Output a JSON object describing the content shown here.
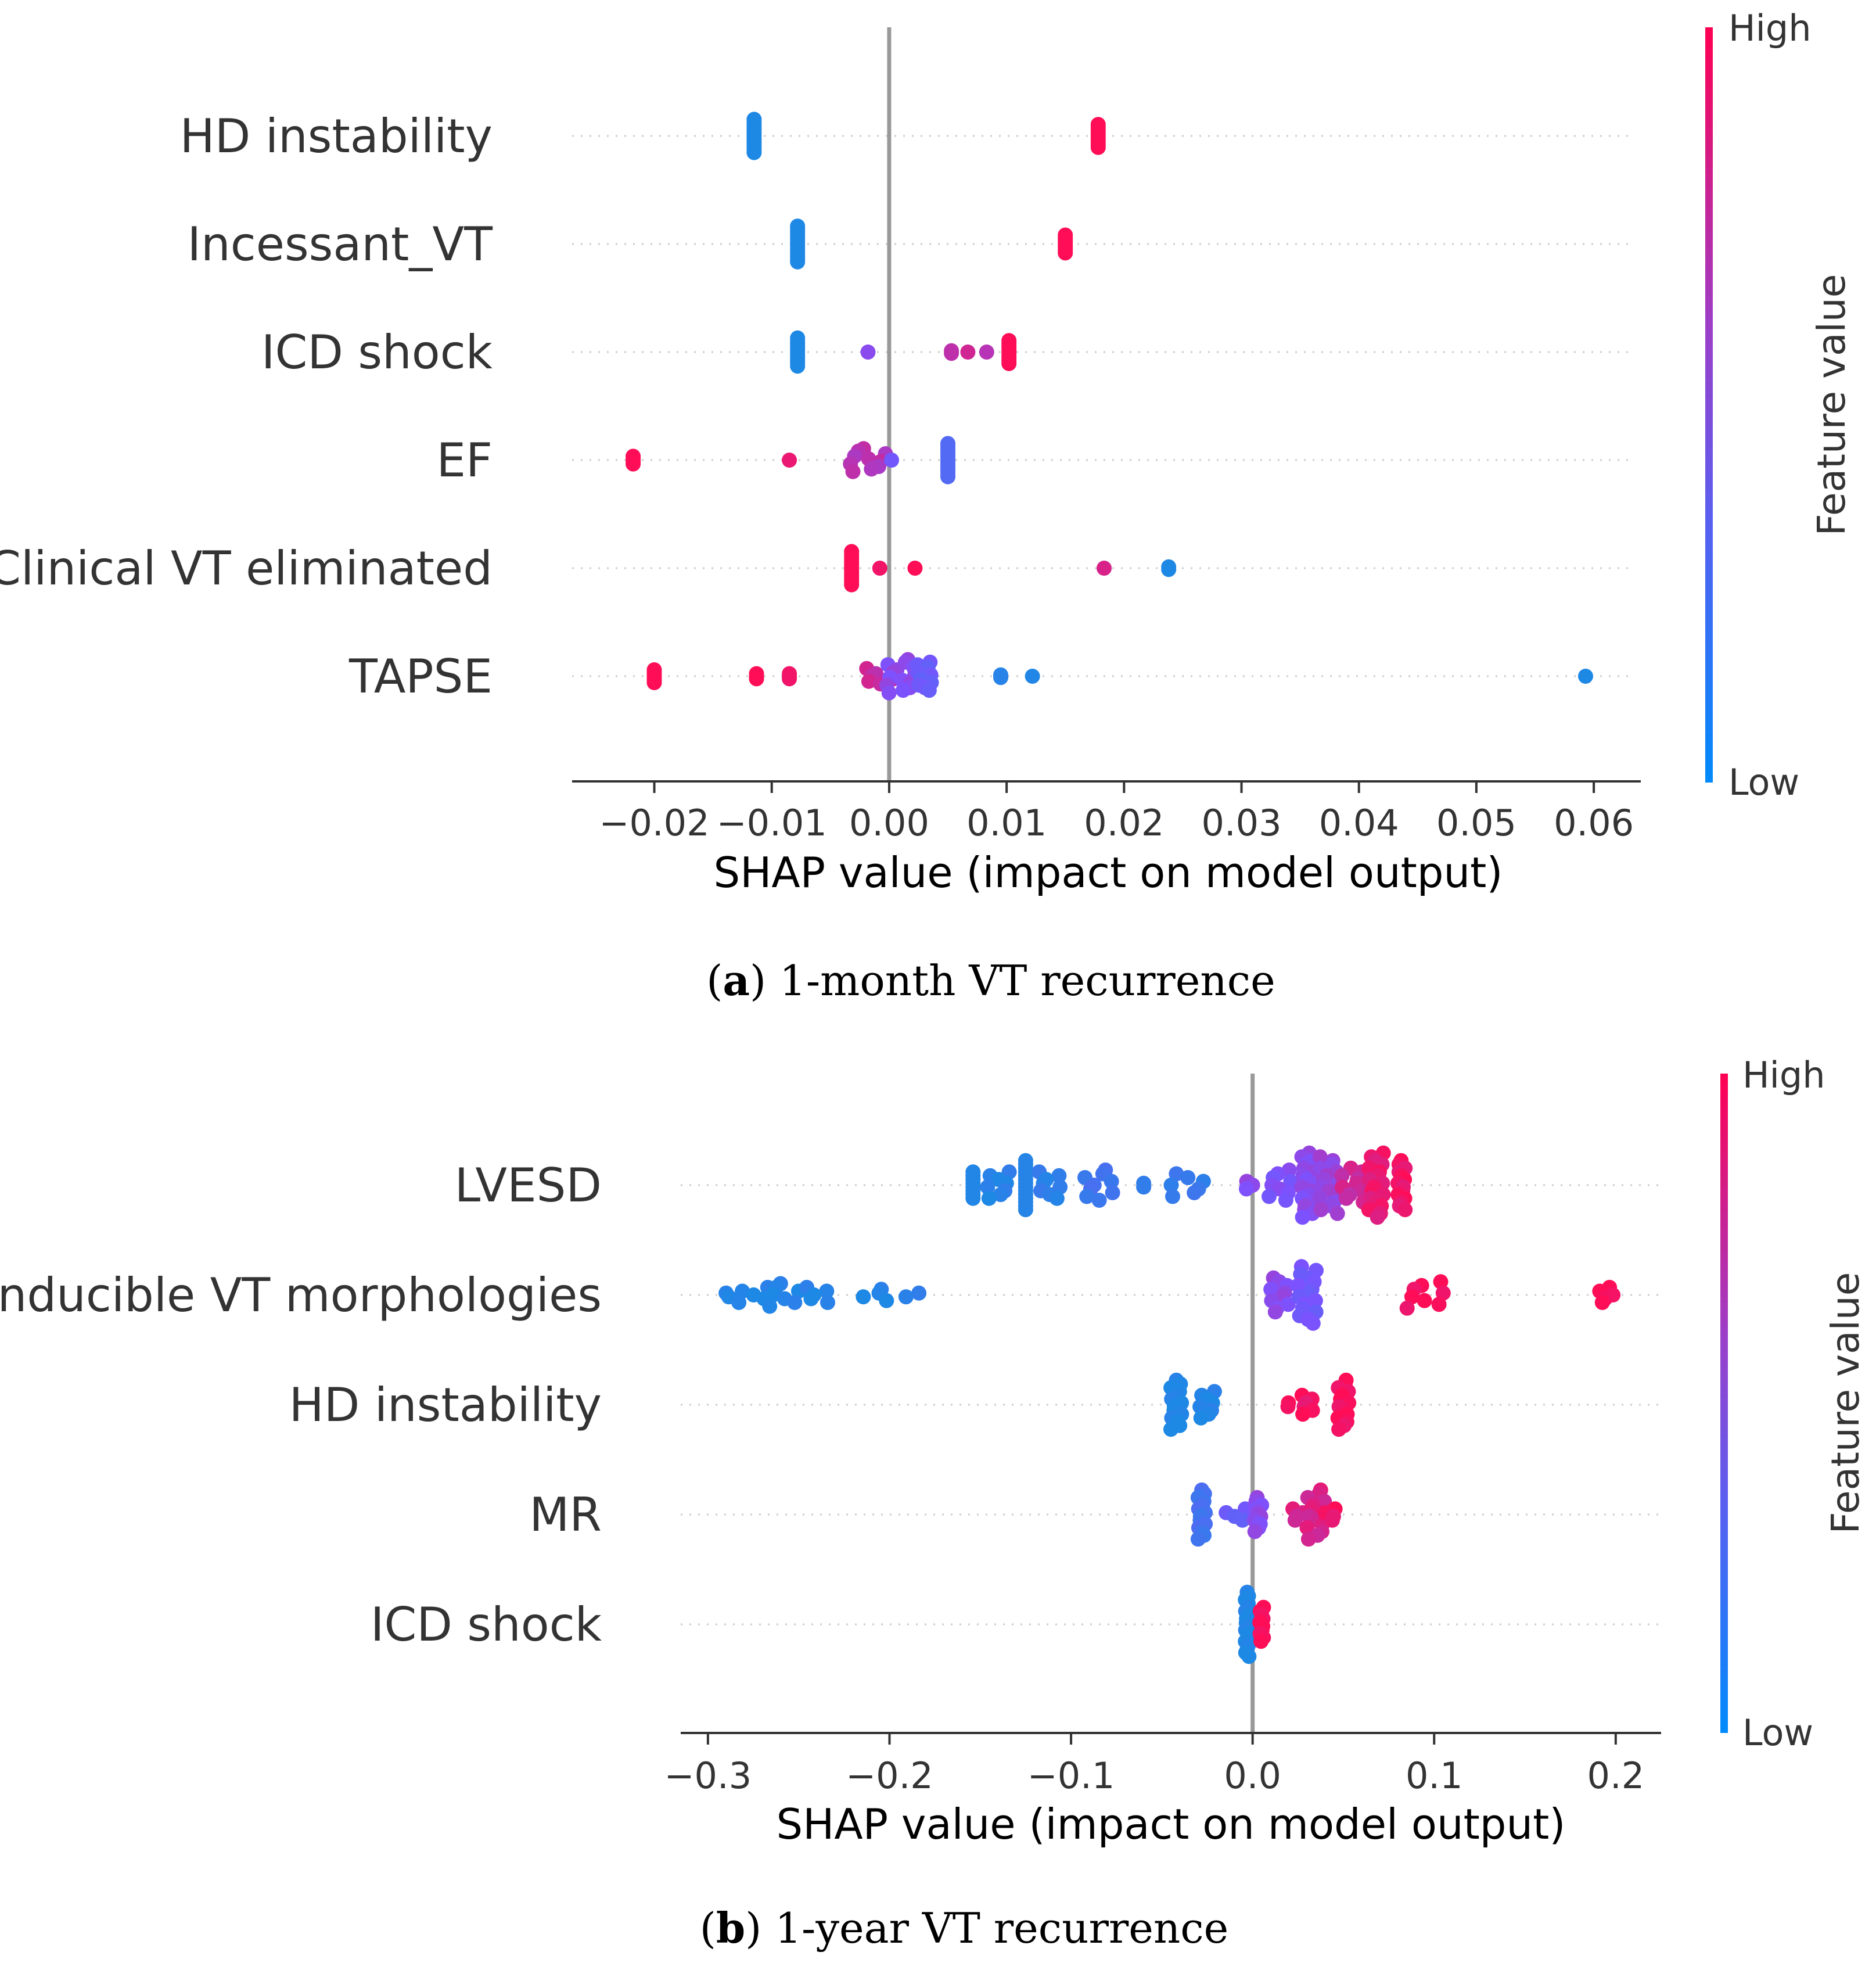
{
  "colors": {
    "low": "#1e88e5",
    "mid": "#7c52ff",
    "high": "#ff0d57",
    "zero_line": "#999999",
    "axis": "#333333",
    "row_guide": "#cccccc"
  },
  "chart_data": [
    {
      "type": "scatter",
      "subtype": "shap-beeswarm",
      "caption_letter": "a",
      "caption_text": "1-month VT recurrence",
      "xlabel": "SHAP value (impact on model output)",
      "xlim": [
        -0.027,
        0.064
      ],
      "xticks": [
        -0.02,
        -0.01,
        0.0,
        0.01,
        0.02,
        0.03,
        0.04,
        0.05,
        0.06
      ],
      "xtick_labels": [
        "−0.02",
        "−0.01",
        "0.00",
        "0.01",
        "0.02",
        "0.03",
        "0.04",
        "0.05",
        "0.06"
      ],
      "colorbar": {
        "title": "Feature value",
        "high_label": "High",
        "low_label": "Low"
      },
      "features": [
        {
          "name": "HD instability",
          "clusters": [
            {
              "x": -0.0115,
              "value": 0.0,
              "count": 14,
              "spread": 0.0
            },
            {
              "x": 0.0178,
              "value": 1.0,
              "count": 10,
              "spread": 0.0
            }
          ]
        },
        {
          "name": "Incessant_VT",
          "clusters": [
            {
              "x": -0.0078,
              "value": 0.0,
              "count": 15,
              "spread": 0.0
            },
            {
              "x": 0.015,
              "value": 1.0,
              "count": 8,
              "spread": 0.0
            }
          ]
        },
        {
          "name": "ICD shock",
          "clusters": [
            {
              "x": -0.0078,
              "value": 0.0,
              "count": 12,
              "spread": 0.0
            },
            {
              "x": -0.0018,
              "value": 0.55,
              "count": 1,
              "spread": 0.0
            },
            {
              "x": 0.0053,
              "value": 0.75,
              "count": 2,
              "spread": 0.0
            },
            {
              "x": 0.0067,
              "value": 0.82,
              "count": 1,
              "spread": 0.0
            },
            {
              "x": 0.0083,
              "value": 0.72,
              "count": 1,
              "spread": 0.0
            },
            {
              "x": 0.0102,
              "value": 1.0,
              "count": 10,
              "spread": 0.0
            }
          ]
        },
        {
          "name": "EF",
          "clusters": [
            {
              "x": -0.0218,
              "value": 1.0,
              "count": 4,
              "spread": 0.0
            },
            {
              "x": -0.0085,
              "value": 0.92,
              "count": 1,
              "spread": 0.0
            },
            {
              "x": -0.0018,
              "value": 0.72,
              "count": 10,
              "spread": 0.0015
            },
            {
              "x": 0.0002,
              "value": 0.45,
              "count": 1,
              "spread": 0.0
            },
            {
              "x": 0.005,
              "value": 0.28,
              "count": 14,
              "spread": 0.0
            }
          ]
        },
        {
          "name": "Clinical VT eliminated",
          "clusters": [
            {
              "x": -0.0032,
              "value": 1.0,
              "count": 14,
              "spread": 0.0
            },
            {
              "x": -0.0008,
              "value": 0.95,
              "count": 1,
              "spread": 0.0
            },
            {
              "x": 0.0022,
              "value": 1.0,
              "count": 1,
              "spread": 0.0
            },
            {
              "x": 0.0183,
              "value": 0.85,
              "count": 1,
              "spread": 0.0
            },
            {
              "x": 0.0238,
              "value": 0.0,
              "count": 2,
              "spread": 0.0
            }
          ]
        },
        {
          "name": "TAPSE",
          "clusters": [
            {
              "x": -0.02,
              "value": 1.0,
              "count": 6,
              "spread": 0.0
            },
            {
              "x": -0.0113,
              "value": 1.0,
              "count": 3,
              "spread": 0.0
            },
            {
              "x": -0.0085,
              "value": 0.95,
              "count": 3,
              "spread": 0.0
            },
            {
              "x": -0.0008,
              "value": 0.78,
              "count": 7,
              "spread": 0.0012
            },
            {
              "x": 0.001,
              "value": 0.55,
              "count": 14,
              "spread": 0.0012
            },
            {
              "x": 0.003,
              "value": 0.4,
              "count": 12,
              "spread": 0.0006
            },
            {
              "x": 0.0095,
              "value": 0.05,
              "count": 2,
              "spread": 0.0
            },
            {
              "x": 0.0122,
              "value": 0.02,
              "count": 1,
              "spread": 0.0
            },
            {
              "x": 0.0593,
              "value": 0.0,
              "count": 1,
              "spread": 0.0
            }
          ]
        }
      ]
    },
    {
      "type": "scatter",
      "subtype": "shap-beeswarm",
      "caption_letter": "b",
      "caption_text": "1-year VT recurrence",
      "xlabel": "SHAP value (impact on model output)",
      "xlim": [
        -0.315,
        0.225
      ],
      "xticks": [
        -0.3,
        -0.2,
        -0.1,
        0.0,
        0.1,
        0.2
      ],
      "xtick_labels": [
        "−0.3",
        "−0.2",
        "−0.1",
        "0.0",
        "0.1",
        "0.2"
      ],
      "colorbar": {
        "title": "Feature value",
        "high_label": "High",
        "low_label": "Low"
      },
      "features": [
        {
          "name": "LVESD",
          "clusters": [
            {
              "x": -0.154,
              "value": 0.02,
              "count": 8,
              "spread": 0.0
            },
            {
              "x": -0.14,
              "value": 0.05,
              "count": 8,
              "spread": 0.006
            },
            {
              "x": -0.125,
              "value": 0.04,
              "count": 14,
              "spread": 0.0
            },
            {
              "x": -0.112,
              "value": 0.08,
              "count": 8,
              "spread": 0.006
            },
            {
              "x": -0.085,
              "value": 0.18,
              "count": 9,
              "spread": 0.008
            },
            {
              "x": -0.06,
              "value": 0.1,
              "count": 2,
              "spread": 0.0
            },
            {
              "x": -0.035,
              "value": 0.12,
              "count": 7,
              "spread": 0.01
            },
            {
              "x": -0.002,
              "value": 0.55,
              "count": 3,
              "spread": 0.002
            },
            {
              "x": 0.015,
              "value": 0.5,
              "count": 9,
              "spread": 0.006
            },
            {
              "x": 0.03,
              "value": 0.55,
              "count": 18,
              "spread": 0.003
            },
            {
              "x": 0.042,
              "value": 0.6,
              "count": 16,
              "spread": 0.005
            },
            {
              "x": 0.055,
              "value": 0.8,
              "count": 10,
              "spread": 0.006
            },
            {
              "x": 0.068,
              "value": 0.92,
              "count": 18,
              "spread": 0.004
            },
            {
              "x": 0.082,
              "value": 0.95,
              "count": 14,
              "spread": 0.002
            }
          ]
        },
        {
          "name": "Inducible VT morphologies",
          "clusters": [
            {
              "x": -0.29,
              "value": 0.0,
              "count": 2,
              "spread": 0.002
            },
            {
              "x": -0.275,
              "value": 0.02,
              "count": 5,
              "spread": 0.008
            },
            {
              "x": -0.258,
              "value": 0.02,
              "count": 7,
              "spread": 0.008
            },
            {
              "x": -0.24,
              "value": 0.03,
              "count": 5,
              "spread": 0.006
            },
            {
              "x": -0.208,
              "value": 0.02,
              "count": 4,
              "spread": 0.007
            },
            {
              "x": -0.187,
              "value": 0.05,
              "count": 2,
              "spread": 0.004
            },
            {
              "x": 0.015,
              "value": 0.55,
              "count": 10,
              "spread": 0.005
            },
            {
              "x": 0.03,
              "value": 0.45,
              "count": 16,
              "spread": 0.005
            },
            {
              "x": 0.095,
              "value": 0.98,
              "count": 8,
              "spread": 0.01
            },
            {
              "x": 0.195,
              "value": 1.0,
              "count": 5,
              "spread": 0.004
            }
          ]
        },
        {
          "name": "HD instability",
          "clusters": [
            {
              "x": -0.042,
              "value": 0.0,
              "count": 14,
              "spread": 0.003
            },
            {
              "x": -0.025,
              "value": 0.02,
              "count": 8,
              "spread": 0.004
            },
            {
              "x": 0.02,
              "value": 0.95,
              "count": 2,
              "spread": 0.001
            },
            {
              "x": 0.03,
              "value": 0.95,
              "count": 6,
              "spread": 0.003
            },
            {
              "x": 0.05,
              "value": 0.98,
              "count": 14,
              "spread": 0.003
            }
          ]
        },
        {
          "name": "MR",
          "clusters": [
            {
              "x": -0.028,
              "value": 0.2,
              "count": 14,
              "spread": 0.002
            },
            {
              "x": -0.01,
              "value": 0.4,
              "count": 4,
              "spread": 0.006
            },
            {
              "x": 0.003,
              "value": 0.55,
              "count": 10,
              "spread": 0.002
            },
            {
              "x": 0.025,
              "value": 0.85,
              "count": 4,
              "spread": 0.003
            },
            {
              "x": 0.035,
              "value": 0.85,
              "count": 14,
              "spread": 0.005
            },
            {
              "x": 0.043,
              "value": 0.95,
              "count": 4,
              "spread": 0.003
            }
          ]
        },
        {
          "name": "ICD shock",
          "clusters": [
            {
              "x": -0.003,
              "value": 0.0,
              "count": 18,
              "spread": 0.001
            },
            {
              "x": 0.005,
              "value": 1.0,
              "count": 10,
              "spread": 0.001
            }
          ]
        }
      ]
    }
  ]
}
